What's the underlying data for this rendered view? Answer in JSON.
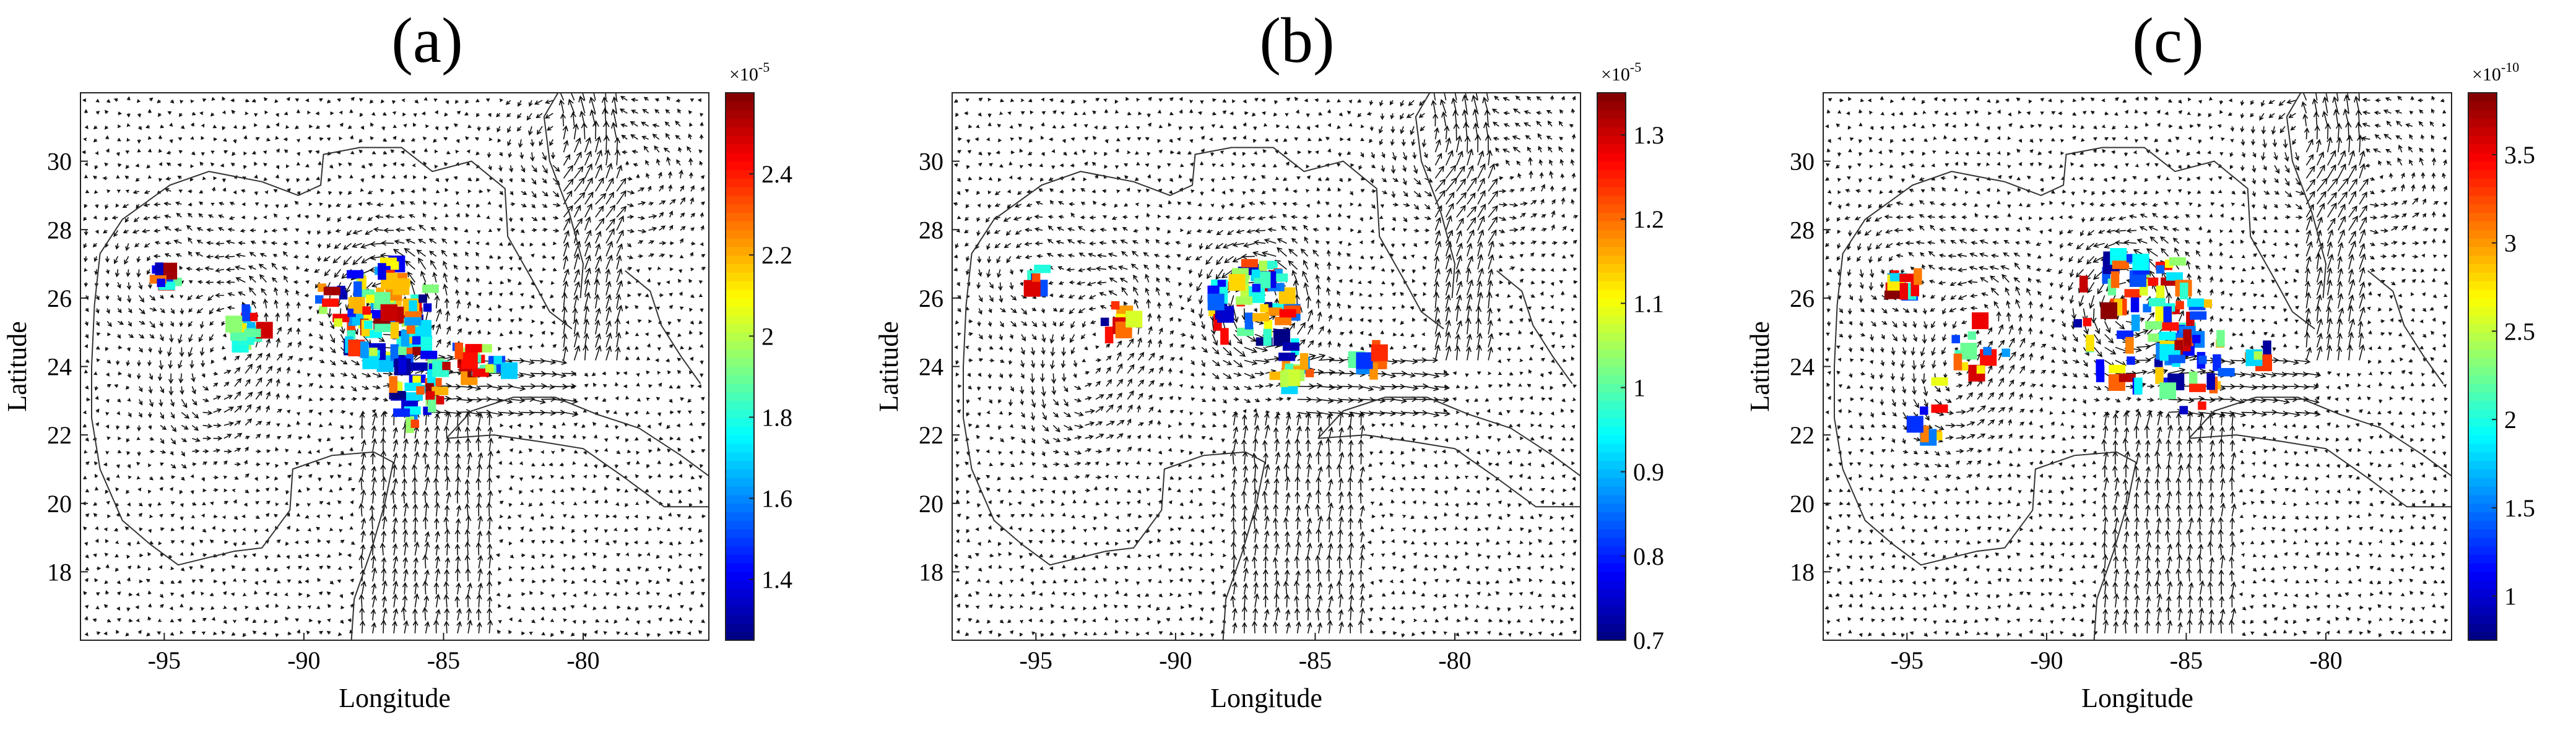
{
  "figure": {
    "panels": [
      "a",
      "b",
      "c"
    ]
  },
  "chart_data": [
    {
      "type": "heatmap",
      "title": "(a)",
      "xlabel": "Longitude",
      "ylabel": "Latitude",
      "xlim": [
        -98,
        -75.5
      ],
      "ylim": [
        16,
        32
      ],
      "xticks": [
        -95,
        -90,
        -85,
        -80
      ],
      "xtick_labels": [
        "-95",
        "-90",
        "-85",
        "-80"
      ],
      "yticks": [
        18,
        20,
        22,
        24,
        26,
        28,
        30
      ],
      "ytick_labels": [
        "18",
        "20",
        "22",
        "24",
        "26",
        "28",
        "30"
      ],
      "colorbar": {
        "colormap": "jet",
        "range": [
          1.25,
          2.6
        ],
        "ticks": [
          1.4,
          1.6,
          1.8,
          2,
          2.2,
          2.4
        ],
        "tick_labels": [
          "1.4",
          "1.6",
          "1.8",
          "2",
          "2.2",
          "2.4"
        ],
        "exponent_base": "×10",
        "exponent_power": "-5"
      },
      "overlay": "ocean current velocity vectors (quiver) with coastline"
    },
    {
      "type": "heatmap",
      "title": "(b)",
      "xlabel": "Longitude",
      "ylabel": "Latitude",
      "xlim": [
        -98,
        -75.5
      ],
      "ylim": [
        16,
        32
      ],
      "xticks": [
        -95,
        -90,
        -85,
        -80
      ],
      "xtick_labels": [
        "-95",
        "-90",
        "-85",
        "-80"
      ],
      "yticks": [
        18,
        20,
        22,
        24,
        26,
        28,
        30
      ],
      "ytick_labels": [
        "18",
        "20",
        "22",
        "24",
        "26",
        "28",
        "30"
      ],
      "colorbar": {
        "colormap": "jet",
        "range": [
          0.7,
          1.35
        ],
        "ticks": [
          0.7,
          0.8,
          0.9,
          1,
          1.1,
          1.2,
          1.3
        ],
        "tick_labels": [
          "0.7",
          "0.8",
          "0.9",
          "1",
          "1.1",
          "1.2",
          "1.3"
        ],
        "exponent_base": "×10",
        "exponent_power": "-5"
      },
      "overlay": "ocean current velocity vectors (quiver) with coastline"
    },
    {
      "type": "heatmap",
      "title": "(c)",
      "xlabel": "Longitude",
      "ylabel": "Latitude",
      "xlim": [
        -98,
        -75.5
      ],
      "ylim": [
        16,
        32
      ],
      "xticks": [
        -95,
        -90,
        -85,
        -80
      ],
      "xtick_labels": [
        "-95",
        "-90",
        "-85",
        "-80"
      ],
      "yticks": [
        18,
        20,
        22,
        24,
        26,
        28,
        30
      ],
      "ytick_labels": [
        "18",
        "20",
        "22",
        "24",
        "26",
        "28",
        "30"
      ],
      "colorbar": {
        "colormap": "jet",
        "range": [
          0.75,
          3.85
        ],
        "ticks": [
          1,
          1.5,
          2,
          2.5,
          3,
          3.5
        ],
        "tick_labels": [
          "1",
          "1.5",
          "2",
          "2.5",
          "3",
          "3.5"
        ],
        "exponent_base": "×10",
        "exponent_power": "-10"
      },
      "overlay": "ocean current velocity vectors (quiver) with coastline"
    }
  ]
}
